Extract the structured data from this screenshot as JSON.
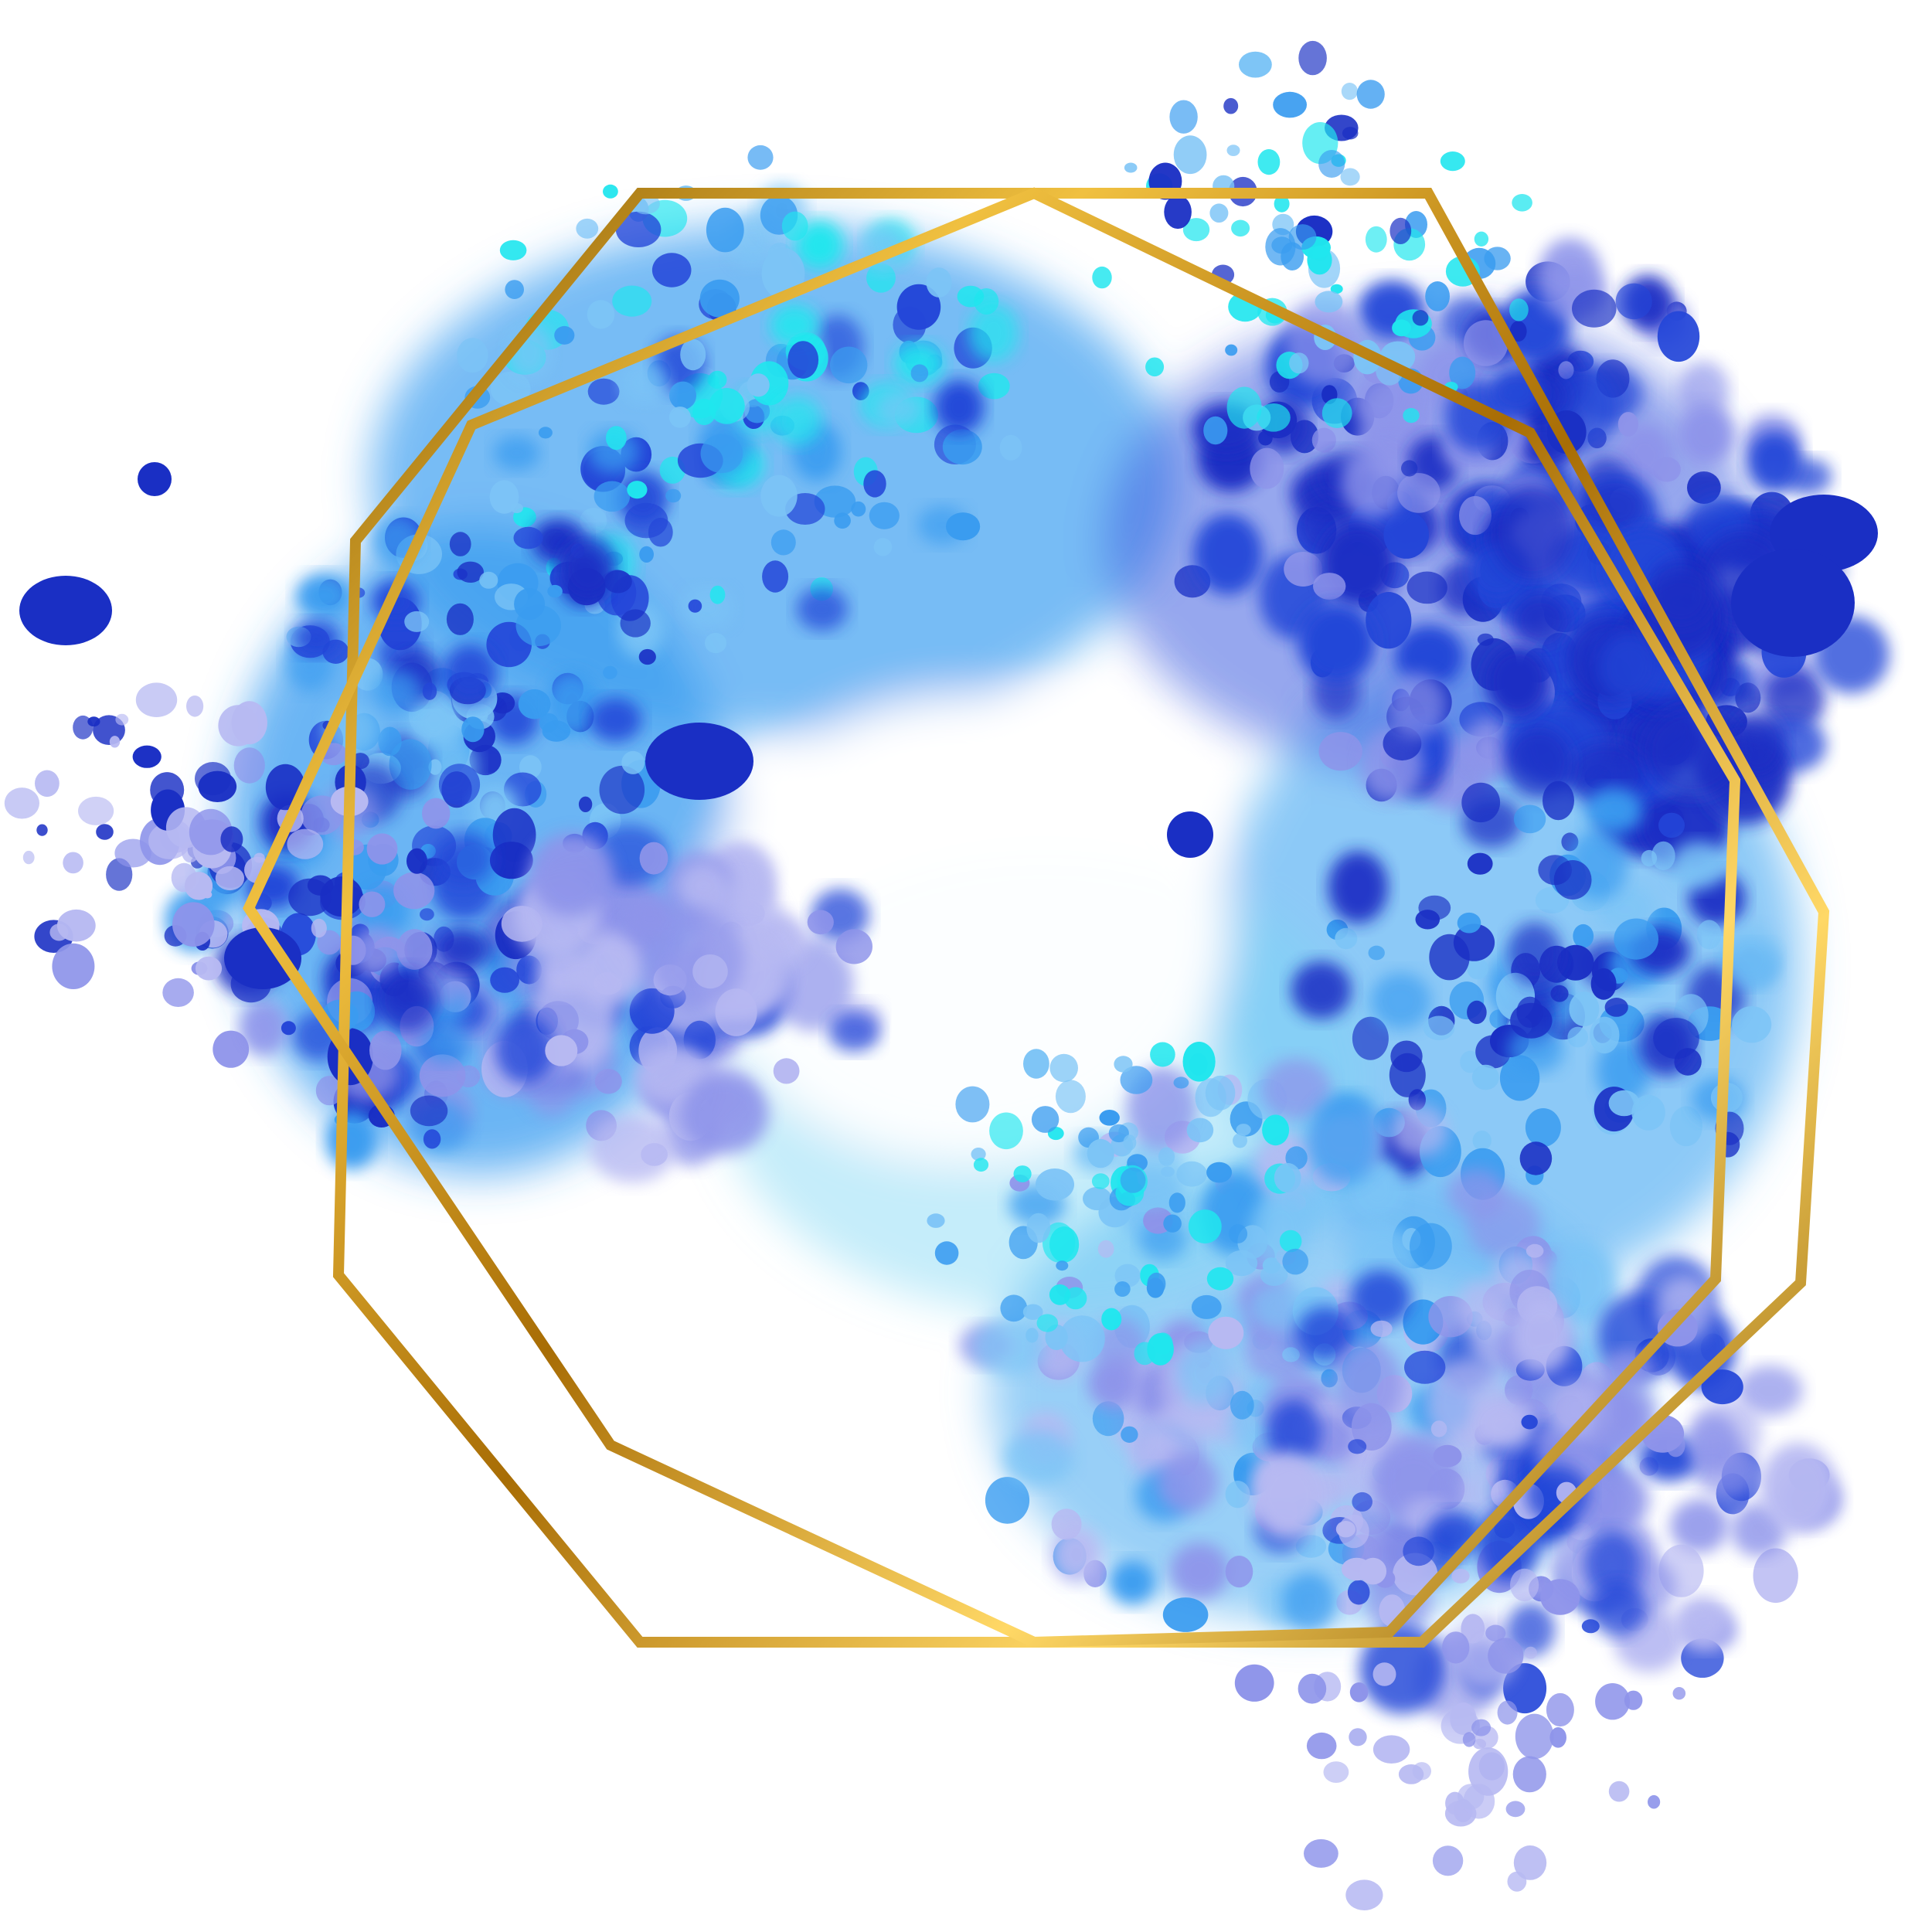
{
  "artwork": {
    "background_color": "#ffffff",
    "frame_color": "#b8860b",
    "frame_highlight_color": "#f0c040",
    "palette": {
      "deep_blue": "#1a2fc4",
      "royal_blue": "#2446d8",
      "sky_blue": "#3a9cf0",
      "light_blue": "#7cc4f6",
      "cyan": "#20e6ee",
      "periwinkle": "#8e94ea",
      "lavender": "#b7b9f2"
    }
  }
}
